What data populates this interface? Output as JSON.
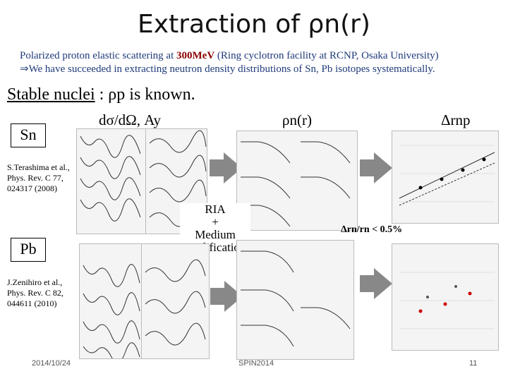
{
  "title": "Extraction of ρn(r)",
  "subtitle": {
    "line1_pre": "Polarized proton elastic scattering at ",
    "line1_em": "300MeV",
    "line1_post": " (Ring cyclotron facility at RCNP, Osaka University)",
    "line2": "⇒We have succeeded in extracting neutron density distributions of Sn, Pb isotopes systematically."
  },
  "stable_nuclei": {
    "label": "Stable nuclei",
    "rest": " : ρp is known."
  },
  "labels": {
    "dsigma": "dσ/dΩ, Ay",
    "rho_n": "ρn(r)",
    "delta_r": "Δrnp",
    "sn": "Sn",
    "pb": "Pb",
    "ria": "RIA",
    "plus": "+",
    "medium": "Medium",
    "modification": "modification",
    "ratio": "Δrn/rn < 0.5%"
  },
  "refs": {
    "terashima": [
      "S.Terashima et al.,",
      "Phys. Rev. C 77,",
      "024317 (2008)"
    ],
    "zenihiro": [
      "J.Zenihiro et al.,",
      "Phys. Rev. C 82,",
      "044611 (2010)"
    ]
  },
  "footer": {
    "date": "2014/10/24",
    "conf": "SPIN2014",
    "page": "11"
  },
  "colors": {
    "arrow": "#888888",
    "title_text": "#111111",
    "subtitle_text": "#1f3a7a",
    "accent": "#8b0000"
  }
}
